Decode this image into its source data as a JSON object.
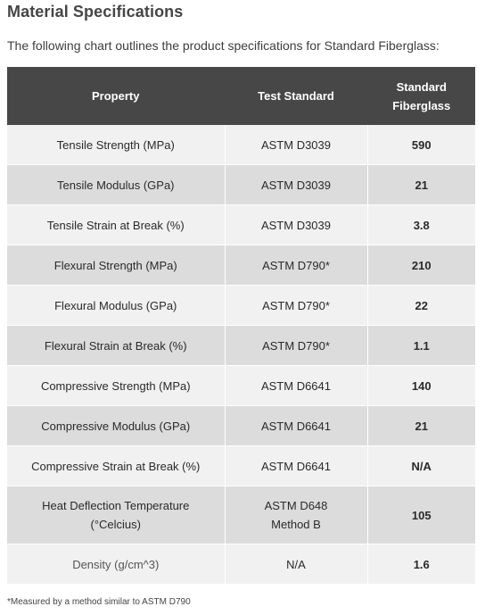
{
  "title": "Material Specifications",
  "intro": "The following chart outlines the product specifications for Standard Fiberglass:",
  "table": {
    "headers": [
      "Property",
      "Test Standard",
      "Standard Fiberglass"
    ],
    "rows": [
      {
        "property": "Tensile Strength (MPa)",
        "standard": "ASTM D3039",
        "value": "590"
      },
      {
        "property": "Tensile Modulus (GPa)",
        "standard": "ASTM D3039",
        "value": "21"
      },
      {
        "property": "Tensile Strain at Break (%)",
        "standard": "ASTM D3039",
        "value": "3.8"
      },
      {
        "property": "Flexural Strength (MPa)",
        "standard": "ASTM D790*",
        "value": "210"
      },
      {
        "property": "Flexural Modulus (GPa)",
        "standard": "ASTM D790*",
        "value": "22"
      },
      {
        "property": "Flexural Strain at Break (%)",
        "standard": "ASTM D790*",
        "value": "1.1"
      },
      {
        "property": "Compressive Strength (MPa)",
        "standard": "ASTM D6641",
        "value": "140"
      },
      {
        "property": "Compressive Modulus (GPa)",
        "standard": "ASTM D6641",
        "value": "21"
      },
      {
        "property": "Compressive Strain at Break (%)",
        "standard": "ASTM D6641",
        "value": "N/A"
      },
      {
        "property": "Heat Deflection Temperature (°Celcius)",
        "standard": "ASTM D648 Method B",
        "value": "105"
      },
      {
        "property": "Density (g/cm^3)",
        "standard": "N/A",
        "value": "1.6"
      }
    ]
  },
  "footnote": "*Measured by a method similar to ASTM D790",
  "colors": {
    "header_bg": "#474747",
    "row_light": "#f1f1f1",
    "row_dark": "#dcdcdc"
  }
}
